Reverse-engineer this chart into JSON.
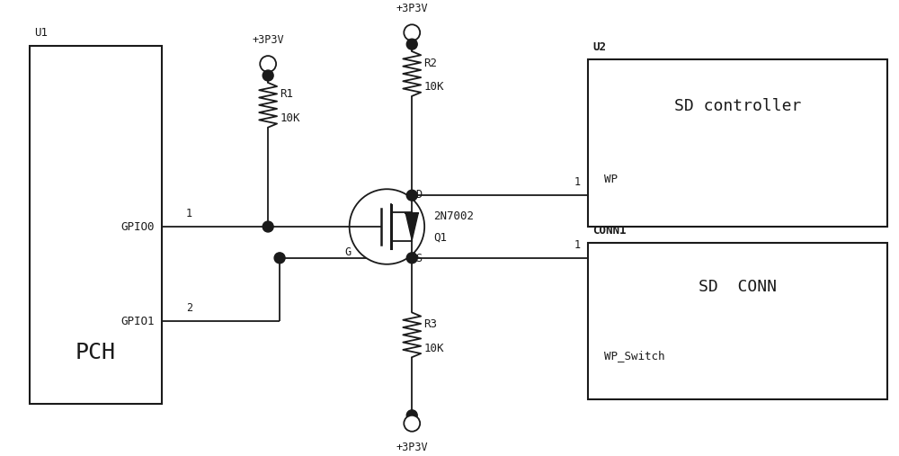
{
  "bg_color": "#ffffff",
  "line_color": "#1a1a1a",
  "u1_label": "U1",
  "u2_label": "U2",
  "conn1_label": "CONN1",
  "pch_label": "PCH",
  "sd_controller_label": "SD controller",
  "sd_conn_label": "SD  CONN",
  "wp_label": "WP",
  "wp_switch_label": "WP_Switch",
  "gpio0_label": "GPIO0",
  "gpio1_label": "GPIO1",
  "pin1_label": "1",
  "pin2_label": "2",
  "r1_label1": "R1",
  "r1_label2": "10K",
  "r2_label1": "R2",
  "r2_label2": "10K",
  "r3_label1": "R3",
  "r3_label2": "10K",
  "q1_label1": "2N7002",
  "q1_label2": "Q1",
  "vcc_label": "+3P3V",
  "g_label": "G",
  "d_label": "D",
  "s_label": "S"
}
